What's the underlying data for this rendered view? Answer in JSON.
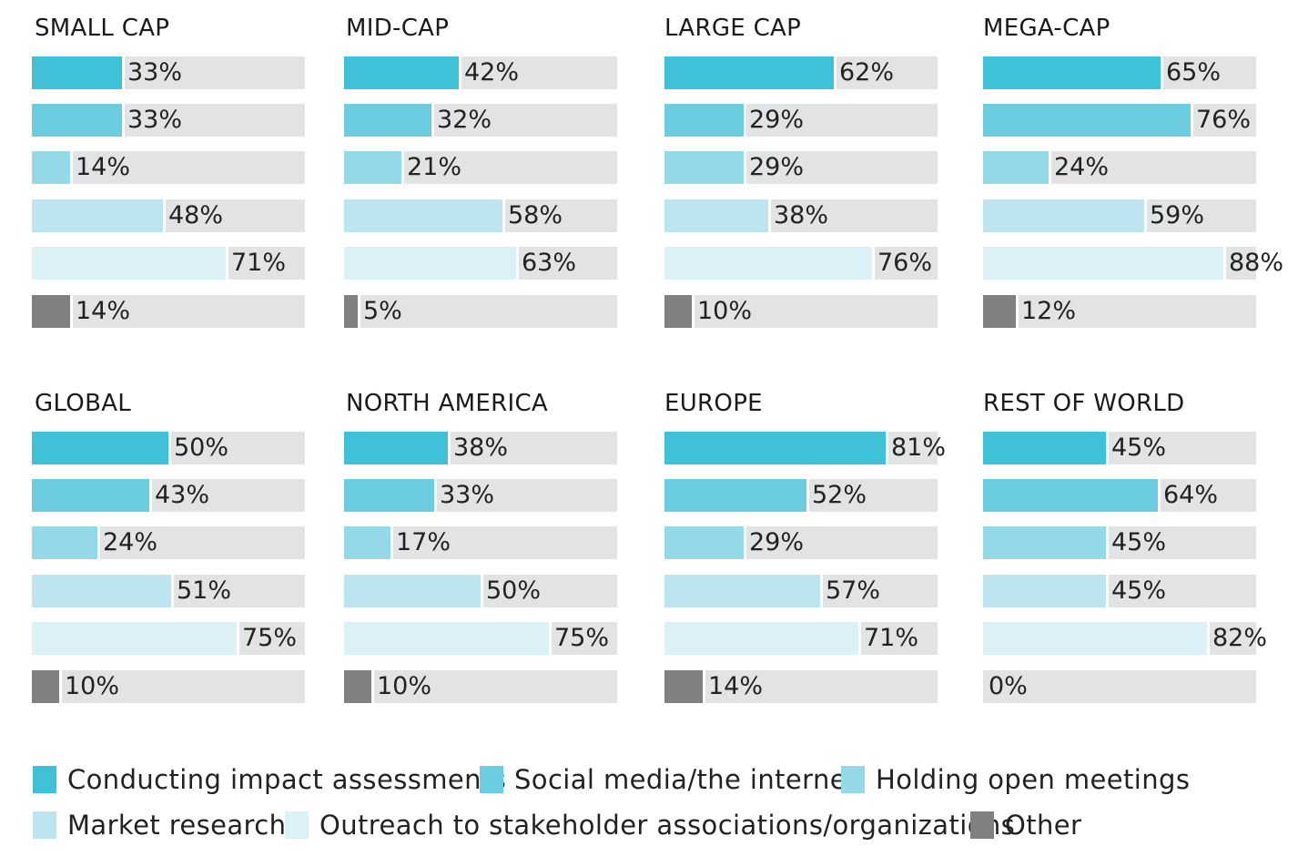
{
  "chart_data": {
    "type": "bar",
    "orientation": "horizontal",
    "value_unit": "%",
    "xlim": [
      0,
      100
    ],
    "series": [
      {
        "name": "Conducting impact assessments",
        "color": "#3fc1d8"
      },
      {
        "name": "Social media/the internet",
        "color": "#6ccde0"
      },
      {
        "name": "Holding open meetings",
        "color": "#94d9e8"
      },
      {
        "name": "Market research",
        "color": "#bce5f0"
      },
      {
        "name": "Outreach to stakeholder associations/organizations",
        "color": "#dcf0f7"
      },
      {
        "name": "Other",
        "color": "#7f8081"
      }
    ],
    "panels": [
      {
        "title": "SMALL CAP",
        "values": [
          33,
          33,
          14,
          48,
          71,
          14
        ]
      },
      {
        "title": "MID-CAP",
        "values": [
          42,
          32,
          21,
          58,
          63,
          5
        ]
      },
      {
        "title": "LARGE CAP",
        "values": [
          62,
          29,
          29,
          38,
          76,
          10
        ]
      },
      {
        "title": "MEGA-CAP",
        "values": [
          65,
          76,
          24,
          59,
          88,
          12
        ]
      },
      {
        "title": "GLOBAL",
        "values": [
          50,
          43,
          24,
          51,
          75,
          10
        ]
      },
      {
        "title": "NORTH AMERICA",
        "values": [
          38,
          33,
          17,
          50,
          75,
          10
        ]
      },
      {
        "title": "EUROPE",
        "values": [
          81,
          52,
          29,
          57,
          71,
          14
        ]
      },
      {
        "title": "REST OF WORLD",
        "values": [
          45,
          64,
          45,
          45,
          82,
          0
        ]
      }
    ],
    "legend_position": "bottom",
    "grid": false
  }
}
